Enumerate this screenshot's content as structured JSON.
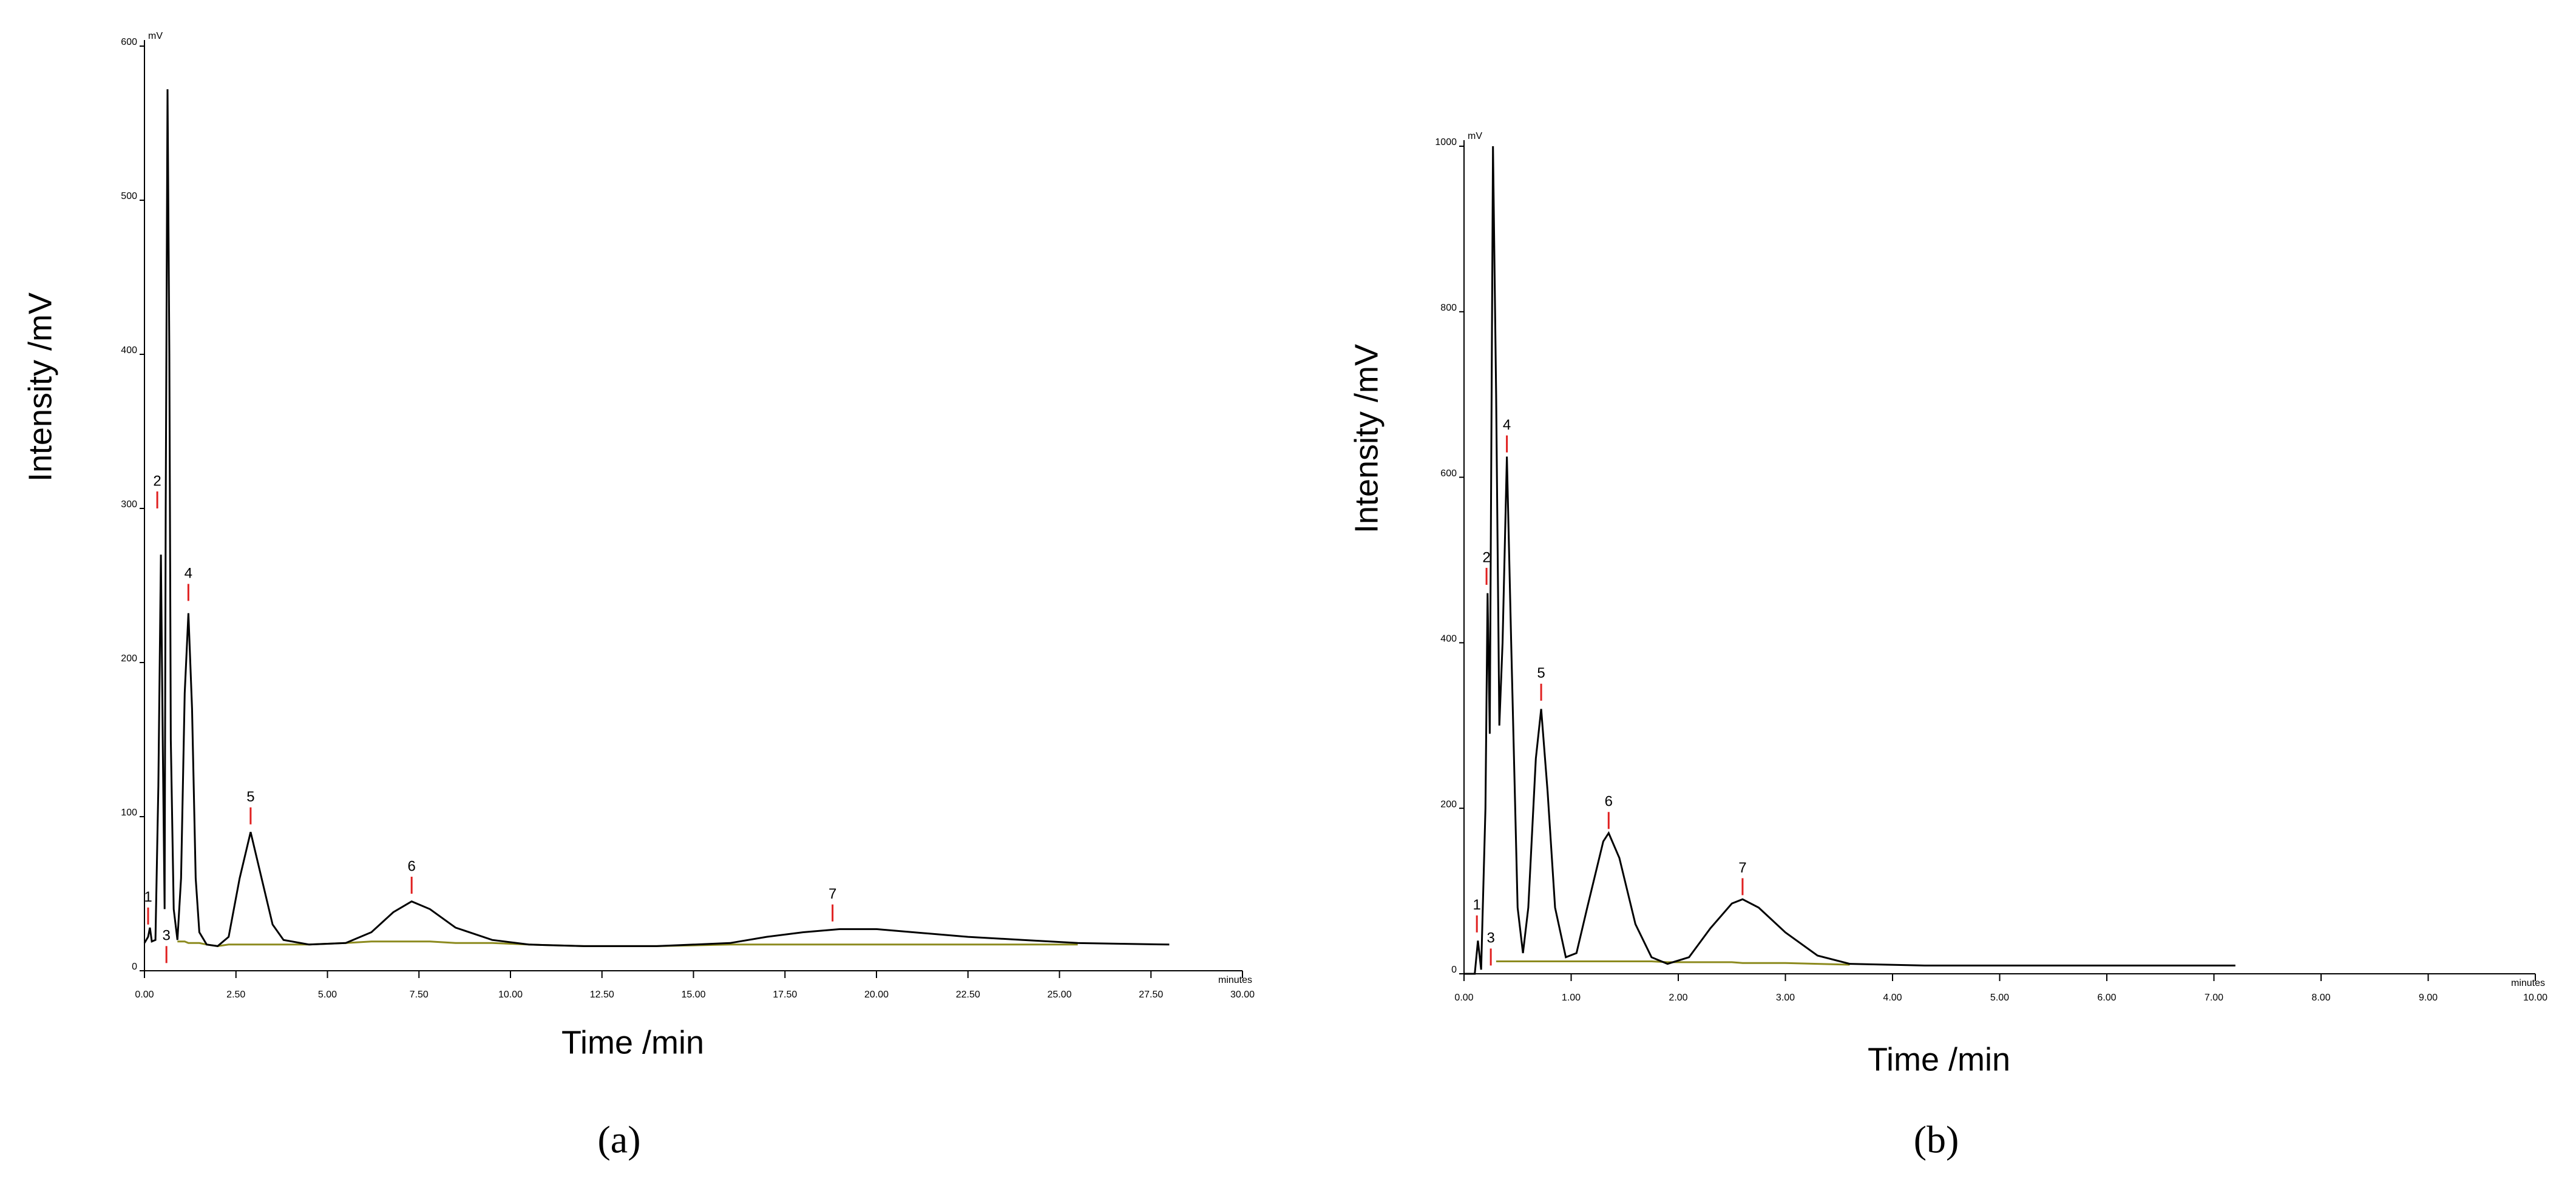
{
  "chart_data": [
    {
      "type": "line",
      "panel_label": "(a)",
      "xlabel": "Time /min",
      "ylabel": "Intensity /mV",
      "y_unit": "mV",
      "x_unit": "minutes",
      "xlim": [
        0,
        30
      ],
      "ylim": [
        0,
        600
      ],
      "xticks": [
        {
          "value": 0,
          "label": "0.00"
        },
        {
          "value": 2.5,
          "label": "2.50"
        },
        {
          "value": 5,
          "label": "5.00"
        },
        {
          "value": 7.5,
          "label": "7.50"
        },
        {
          "value": 10,
          "label": "10.00"
        },
        {
          "value": 12.5,
          "label": "12.50"
        },
        {
          "value": 15,
          "label": "15.00"
        },
        {
          "value": 17.5,
          "label": "17.50"
        },
        {
          "value": 20,
          "label": "20.00"
        },
        {
          "value": 22.5,
          "label": "22.50"
        },
        {
          "value": 25,
          "label": "25.00"
        },
        {
          "value": 27.5,
          "label": "27.50"
        },
        {
          "value": 30,
          "label": "30.00"
        }
      ],
      "yticks": [
        0,
        100,
        200,
        300,
        400,
        500,
        600
      ],
      "x": [
        0,
        0.1,
        0.15,
        0.2,
        0.3,
        0.38,
        0.45,
        0.5,
        0.55,
        0.58,
        0.63,
        0.68,
        0.72,
        0.8,
        0.9,
        1.0,
        1.1,
        1.2,
        1.3,
        1.4,
        1.5,
        1.7,
        2.0,
        2.3,
        2.6,
        2.9,
        3.2,
        3.5,
        3.8,
        4.5,
        5.5,
        6.2,
        6.8,
        7.3,
        7.8,
        8.5,
        9.5,
        10.5,
        12,
        14,
        16,
        17,
        18,
        19,
        20,
        21,
        22.5,
        24,
        25.5,
        28
      ],
      "series": [
        {
          "color": "#000000",
          "values": [
            18,
            22,
            28,
            19,
            20,
            120,
            270,
            150,
            40,
            300,
            572,
            400,
            150,
            40,
            20,
            60,
            180,
            232,
            170,
            60,
            25,
            17,
            16,
            22,
            60,
            90,
            60,
            30,
            20,
            17,
            18,
            25,
            38,
            45,
            40,
            28,
            20,
            17,
            16,
            16,
            18,
            22,
            25,
            27,
            27,
            25,
            22,
            20,
            18,
            17
          ]
        },
        {
          "color": "#8c8a1e",
          "values": [
            null,
            null,
            null,
            null,
            null,
            null,
            null,
            null,
            null,
            null,
            null,
            null,
            null,
            null,
            19,
            19,
            19,
            18,
            18,
            18,
            18,
            17,
            16,
            17,
            17,
            17,
            17,
            17,
            17,
            17,
            18,
            19,
            19,
            19,
            19,
            18,
            18,
            17,
            16,
            16,
            17,
            17,
            17,
            17,
            17,
            17,
            17,
            17,
            17,
            null
          ]
        }
      ],
      "annotations": [
        {
          "text": "1",
          "x": 0.1,
          "y": 30
        },
        {
          "text": "2",
          "x": 0.35,
          "y": 300
        },
        {
          "text": "3",
          "x": 0.6,
          "y": 5
        },
        {
          "text": "4",
          "x": 1.2,
          "y": 240
        },
        {
          "text": "5",
          "x": 2.9,
          "y": 95
        },
        {
          "text": "6",
          "x": 7.3,
          "y": 50
        },
        {
          "text": "7",
          "x": 18.8,
          "y": 32
        }
      ]
    },
    {
      "type": "line",
      "panel_label": "(b)",
      "xlabel": "Time /min",
      "ylabel": "Intensity /mV",
      "y_unit": "mV",
      "x_unit": "minutes",
      "xlim": [
        0,
        10
      ],
      "ylim": [
        0,
        1000
      ],
      "xticks": [
        {
          "value": 0,
          "label": "0.00"
        },
        {
          "value": 1,
          "label": "1.00"
        },
        {
          "value": 2,
          "label": "2.00"
        },
        {
          "value": 3,
          "label": "3.00"
        },
        {
          "value": 4,
          "label": "4.00"
        },
        {
          "value": 5,
          "label": "5.00"
        },
        {
          "value": 6,
          "label": "6.00"
        },
        {
          "value": 7,
          "label": "7.00"
        },
        {
          "value": 8,
          "label": "8.00"
        },
        {
          "value": 9,
          "label": "9.00"
        },
        {
          "value": 10,
          "label": "10.00"
        }
      ],
      "yticks": [
        0,
        200,
        400,
        600,
        800,
        1000
      ],
      "x": [
        0,
        0.1,
        0.13,
        0.16,
        0.2,
        0.22,
        0.24,
        0.27,
        0.3,
        0.33,
        0.36,
        0.4,
        0.44,
        0.5,
        0.55,
        0.6,
        0.67,
        0.72,
        0.78,
        0.85,
        0.95,
        1.05,
        1.15,
        1.3,
        1.35,
        1.45,
        1.6,
        1.75,
        1.9,
        2.1,
        2.3,
        2.5,
        2.6,
        2.75,
        3.0,
        3.3,
        3.6,
        4.3,
        7.2
      ],
      "series": [
        {
          "color": "#000000",
          "values": [
            0,
            0,
            40,
            5,
            200,
            460,
            290,
            1000,
            700,
            300,
            400,
            625,
            400,
            80,
            25,
            80,
            260,
            320,
            220,
            80,
            20,
            25,
            80,
            160,
            170,
            140,
            60,
            20,
            12,
            20,
            55,
            85,
            90,
            80,
            50,
            22,
            12,
            10,
            10
          ]
        },
        {
          "color": "#8c8a1e",
          "values": [
            null,
            null,
            null,
            null,
            null,
            null,
            null,
            null,
            15,
            15,
            15,
            15,
            15,
            15,
            15,
            15,
            15,
            15,
            15,
            15,
            15,
            15,
            15,
            15,
            15,
            15,
            15,
            15,
            14,
            14,
            14,
            14,
            13,
            13,
            13,
            12,
            11,
            null,
            null
          ]
        }
      ],
      "annotations": [
        {
          "text": "1",
          "x": 0.12,
          "y": 50
        },
        {
          "text": "2",
          "x": 0.21,
          "y": 470
        },
        {
          "text": "3",
          "x": 0.25,
          "y": 10
        },
        {
          "text": "4",
          "x": 0.4,
          "y": 630
        },
        {
          "text": "5",
          "x": 0.72,
          "y": 330
        },
        {
          "text": "6",
          "x": 1.35,
          "y": 175
        },
        {
          "text": "7",
          "x": 2.6,
          "y": 95
        }
      ]
    }
  ]
}
